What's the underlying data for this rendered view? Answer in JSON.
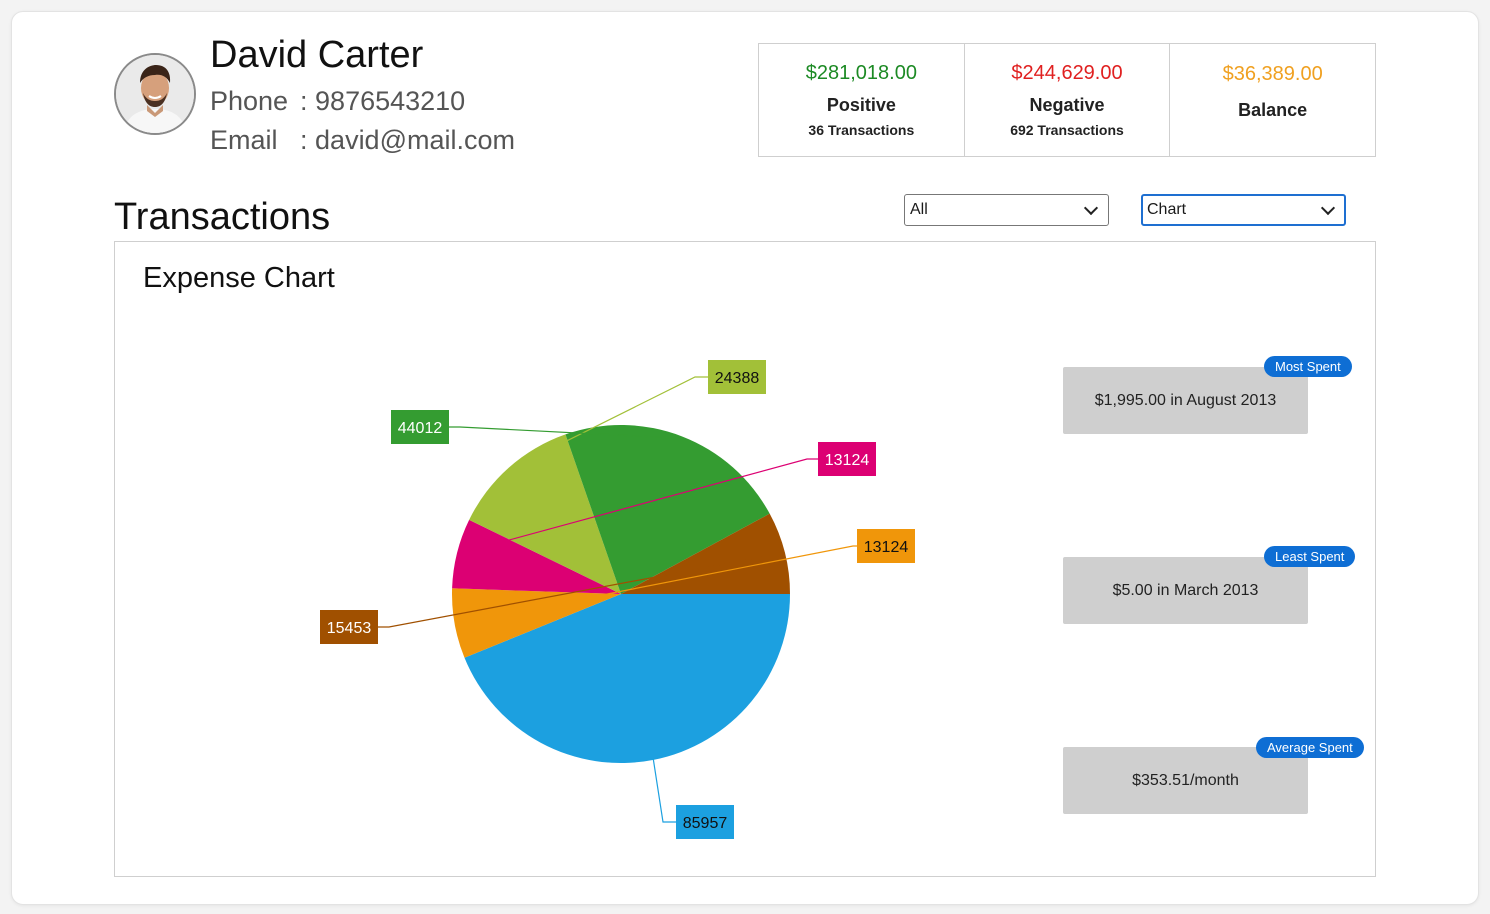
{
  "user": {
    "name": "David Carter",
    "phone_label": "Phone",
    "phone_value": "9876543210",
    "email_label": "Email",
    "email_value": "david@mail.com",
    "separator": ":"
  },
  "summary": [
    {
      "amount": "$281,018.00",
      "title": "Positive",
      "subtitle": "36 Transactions",
      "color": "#1c8a24"
    },
    {
      "amount": "$244,629.00",
      "title": "Negative",
      "subtitle": "692 Transactions",
      "color": "#e02020"
    },
    {
      "amount": "$36,389.00",
      "title": "Balance",
      "subtitle": "",
      "color": "#f0a020"
    }
  ],
  "transactions": {
    "title": "Transactions",
    "filter_select": {
      "selected": "All"
    },
    "view_select": {
      "selected": "Chart"
    }
  },
  "panel": {
    "title": "Expense Chart"
  },
  "chart_data": {
    "type": "pie",
    "values": [
      85957,
      13124,
      13124,
      24388,
      44012,
      15453
    ],
    "labels": [
      "85957",
      "13124",
      "13124",
      "24388",
      "44012",
      "15453"
    ],
    "colors": [
      "#1ca0e0",
      "#f0960a",
      "#dc0073",
      "#a2c038",
      "#349c31",
      "#a05000"
    ]
  },
  "stats": [
    {
      "badge": "Most Spent",
      "text": "$1,995.00 in August 2013"
    },
    {
      "badge": "Least Spent",
      "text": "$5.00 in March 2013"
    },
    {
      "badge": "Average Spent",
      "text": "$353.51/month"
    }
  ],
  "colors": {
    "accent": "#0e6ed4",
    "stat_box": "#cfcfcf"
  }
}
